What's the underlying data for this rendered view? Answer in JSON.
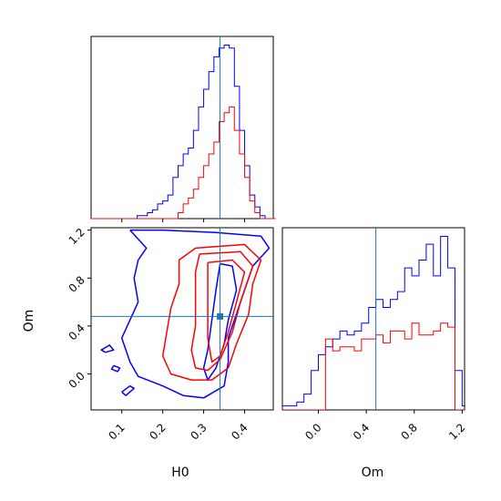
{
  "chart_data": [
    {
      "type": "histogram",
      "panel": "H0 marginal",
      "x_range": [
        0.025,
        0.47
      ],
      "bin_width": 0.0125,
      "series": [
        {
          "color": "#0000ff",
          "bins_start": 0.025,
          "counts": [
            0,
            0,
            0,
            0,
            0,
            0,
            0,
            0,
            0,
            1,
            1,
            2,
            3,
            5,
            6,
            8,
            14,
            18,
            22,
            24,
            30,
            38,
            44,
            50,
            55,
            58,
            59,
            58,
            45,
            30,
            18,
            8,
            4,
            1,
            0,
            0
          ]
        },
        {
          "color": "#ff0000",
          "bins_start": 0.025,
          "counts": [
            0,
            0,
            0,
            0,
            0,
            0,
            0,
            0,
            0,
            0,
            0,
            0,
            0,
            0,
            0,
            0,
            0,
            2,
            5,
            7,
            10,
            14,
            18,
            22,
            26,
            33,
            36,
            38,
            30,
            22,
            14,
            6,
            2,
            0,
            0,
            0
          ]
        }
      ],
      "truth_line": 0.34,
      "xticks": [
        0.1,
        0.2,
        0.3,
        0.4
      ]
    },
    {
      "type": "contour",
      "panel": "H0 vs Om",
      "xlabel": "H0",
      "ylabel": "Om",
      "xlim": [
        0.025,
        0.47
      ],
      "ylim": [
        -0.3,
        1.22
      ],
      "xticks": [
        "0.1",
        "0.2",
        "0.3",
        "0.4"
      ],
      "yticks": [
        "0.0",
        "0.4",
        "0.8",
        "1.2"
      ],
      "truth": [
        0.34,
        0.48
      ],
      "blue_contours": [
        [
          [
            0.06,
            0.18
          ],
          [
            0.08,
            0.2
          ],
          [
            0.07,
            0.24
          ],
          [
            0.05,
            0.2
          ],
          [
            0.06,
            0.18
          ]
        ],
        [
          [
            0.08,
            0.07
          ],
          [
            0.095,
            0.05
          ],
          [
            0.09,
            0.02
          ],
          [
            0.075,
            0.04
          ],
          [
            0.08,
            0.07
          ]
        ],
        [
          [
            0.1,
            -0.15
          ],
          [
            0.12,
            -0.1
          ],
          [
            0.13,
            -0.12
          ],
          [
            0.11,
            -0.18
          ],
          [
            0.1,
            -0.15
          ]
        ],
        [
          [
            0.12,
            1.2
          ],
          [
            0.2,
            1.2
          ],
          [
            0.33,
            1.18
          ],
          [
            0.44,
            1.15
          ],
          [
            0.46,
            1.05
          ],
          [
            0.42,
            0.9
          ],
          [
            0.4,
            0.7
          ],
          [
            0.38,
            0.5
          ],
          [
            0.36,
            0.3
          ],
          [
            0.36,
            0.1
          ],
          [
            0.35,
            -0.1
          ],
          [
            0.3,
            -0.2
          ],
          [
            0.25,
            -0.18
          ],
          [
            0.2,
            -0.1
          ],
          [
            0.14,
            -0.02
          ],
          [
            0.12,
            0.1
          ],
          [
            0.1,
            0.3
          ],
          [
            0.12,
            0.45
          ],
          [
            0.14,
            0.6
          ],
          [
            0.13,
            0.8
          ],
          [
            0.14,
            0.95
          ],
          [
            0.16,
            1.05
          ],
          [
            0.12,
            1.2
          ]
        ],
        [
          [
            0.34,
            0.92
          ],
          [
            0.37,
            0.9
          ],
          [
            0.38,
            0.7
          ],
          [
            0.36,
            0.45
          ],
          [
            0.35,
            0.25
          ],
          [
            0.33,
            0.05
          ],
          [
            0.31,
            -0.05
          ],
          [
            0.3,
            0.05
          ],
          [
            0.31,
            0.2
          ],
          [
            0.32,
            0.45
          ],
          [
            0.33,
            0.7
          ],
          [
            0.34,
            0.92
          ]
        ]
      ],
      "red_contours": [
        [
          [
            0.28,
            1.05
          ],
          [
            0.4,
            1.08
          ],
          [
            0.44,
            0.95
          ],
          [
            0.42,
            0.75
          ],
          [
            0.41,
            0.5
          ],
          [
            0.38,
            0.25
          ],
          [
            0.36,
            0.05
          ],
          [
            0.32,
            -0.05
          ],
          [
            0.27,
            -0.05
          ],
          [
            0.22,
            0.0
          ],
          [
            0.2,
            0.15
          ],
          [
            0.21,
            0.35
          ],
          [
            0.22,
            0.55
          ],
          [
            0.24,
            0.75
          ],
          [
            0.24,
            0.95
          ],
          [
            0.28,
            1.05
          ]
        ],
        [
          [
            0.29,
            1.0
          ],
          [
            0.39,
            1.02
          ],
          [
            0.42,
            0.9
          ],
          [
            0.39,
            0.6
          ],
          [
            0.37,
            0.35
          ],
          [
            0.34,
            0.12
          ],
          [
            0.31,
            0.03
          ],
          [
            0.28,
            0.05
          ],
          [
            0.27,
            0.2
          ],
          [
            0.28,
            0.4
          ],
          [
            0.28,
            0.6
          ],
          [
            0.28,
            0.85
          ],
          [
            0.29,
            1.0
          ]
        ],
        [
          [
            0.31,
            0.93
          ],
          [
            0.37,
            0.95
          ],
          [
            0.4,
            0.85
          ],
          [
            0.38,
            0.6
          ],
          [
            0.36,
            0.35
          ],
          [
            0.34,
            0.15
          ],
          [
            0.32,
            0.1
          ],
          [
            0.31,
            0.3
          ],
          [
            0.31,
            0.55
          ],
          [
            0.31,
            0.93
          ]
        ]
      ]
    },
    {
      "type": "histogram",
      "panel": "Om marginal",
      "xlabel": "Om",
      "x_range": [
        -0.3,
        1.22
      ],
      "bin_width": 0.06,
      "series": [
        {
          "color": "#0000ff",
          "bins_start": -0.3,
          "counts": [
            1,
            1,
            2,
            4,
            10,
            14,
            16,
            18,
            20,
            19,
            20,
            22,
            26,
            28,
            26,
            28,
            30,
            36,
            34,
            38,
            42,
            34,
            44,
            36,
            10,
            1
          ]
        },
        {
          "color": "#ff0000",
          "bins_start": -0.3,
          "counts": [
            0,
            0,
            0,
            0,
            0,
            0,
            18,
            15,
            16,
            16,
            15,
            18,
            18,
            19,
            17,
            20,
            20,
            18,
            22,
            19,
            19,
            20,
            22,
            21,
            0,
            0
          ]
        }
      ],
      "truth_line": 0.48,
      "xticks": [
        "0.0",
        "0.4",
        "0.8",
        "1.2"
      ]
    }
  ]
}
